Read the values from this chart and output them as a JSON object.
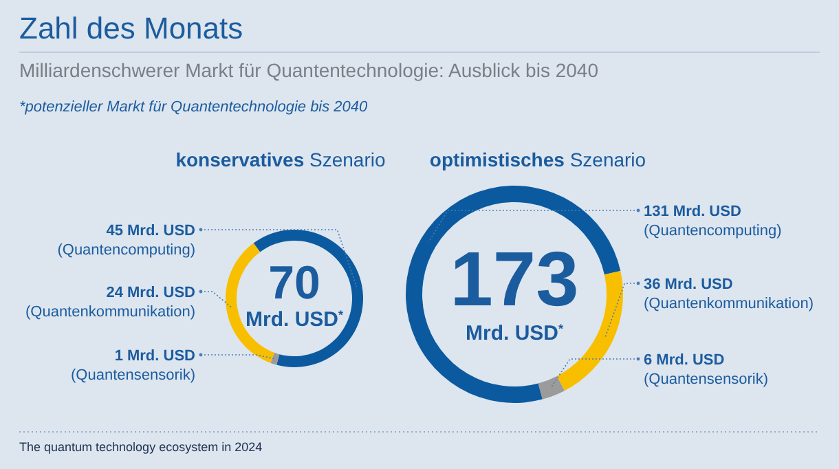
{
  "chart_data": [
    {
      "type": "other",
      "title": "Zahl des Monats",
      "subtitle": "Milliardenschwerer Markt für Quantentechnologie: Ausblick bis 2040",
      "annotations": [
        "*potenzieller Markt für Quantentechnologie bis 2040",
        "The quantum technology ecosystem in 2024"
      ]
    },
    {
      "type": "donut",
      "title": "konservatives Szenario",
      "categories": [
        "(Quantencomputing)",
        "(Quantenkommunikation)",
        "(Quantensensorik)"
      ],
      "values": [
        45,
        24,
        1
      ],
      "colors": [
        "#0b5a9f",
        "#f8bf00",
        "#9b9b9b"
      ],
      "value_labels": [
        "45 Mrd. USD",
        "24 Mrd. USD",
        "1 Mrd. USD"
      ],
      "annotations": [
        "70",
        "Mrd. USD$^{*}$"
      ]
    },
    {
      "type": "donut",
      "title": "optimistisches Szenario",
      "categories": [
        "(Quantencomputing)",
        "(Quantenkommunikation)",
        "(Quantensensorik)"
      ],
      "values": [
        131,
        36,
        6
      ],
      "colors": [
        "#0b5a9f",
        "#f8bf00",
        "#9b9b9b"
      ],
      "value_labels": [
        "131 Mrd. USD",
        "36 Mrd. USD",
        "6 Mrd. USD"
      ],
      "annotations": [
        "173",
        "Mrd. USD$^{*}$"
      ]
    }
  ]
}
